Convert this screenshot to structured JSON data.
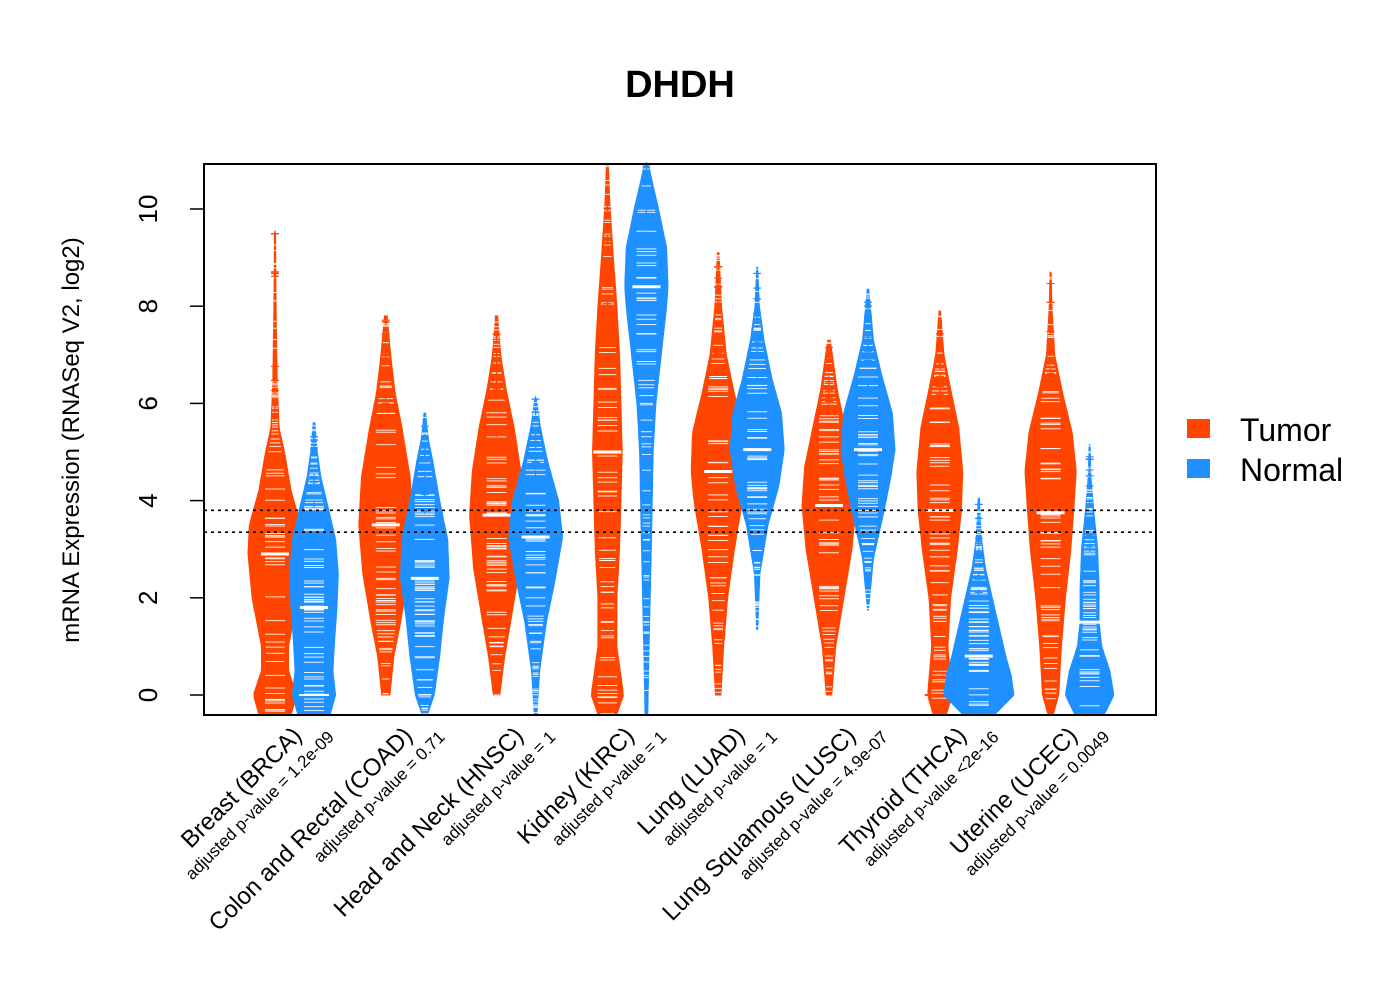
{
  "chart_data": {
    "type": "violin",
    "title": "DHDH",
    "ylabel": "mRNA Expression (RNASeq V2, log2)",
    "xlabel": "",
    "ylim": [
      -0.4,
      11
    ],
    "yticks": [
      0,
      2,
      4,
      6,
      8,
      10
    ],
    "reference_lines": [
      3.35,
      3.8
    ],
    "legend": {
      "position": "right",
      "entries": [
        {
          "name": "Tumor",
          "color": "#FF4500"
        },
        {
          "name": "Normal",
          "color": "#1E90FF"
        }
      ]
    },
    "colors": {
      "tumor": "#FF4500",
      "normal": "#1E90FF"
    },
    "categories": [
      {
        "label": "Breast (BRCA)",
        "pvalue": "adjusted p-value = 1.2e-09",
        "tumor": {
          "min": -0.5,
          "max": 9.5,
          "median": 2.9,
          "zero_mode": true,
          "profile": [
            [
              -0.4,
              0.6
            ],
            [
              0,
              0.8
            ],
            [
              0.5,
              0.5
            ],
            [
              1,
              0.5
            ],
            [
              2,
              0.85
            ],
            [
              2.9,
              1
            ],
            [
              3.5,
              0.95
            ],
            [
              4.2,
              0.6
            ],
            [
              5,
              0.35
            ],
            [
              5.5,
              0.15
            ],
            [
              6.5,
              0.08
            ],
            [
              8,
              0.04
            ],
            [
              9.5,
              0.02
            ]
          ]
        },
        "normal": {
          "min": -0.5,
          "max": 5.6,
          "median": 1.8,
          "zero_mode": true,
          "profile": [
            [
              -0.4,
              0.6
            ],
            [
              0,
              0.8
            ],
            [
              0.5,
              0.7
            ],
            [
              1,
              0.75
            ],
            [
              1.8,
              0.85
            ],
            [
              2.5,
              0.9
            ],
            [
              3.2,
              0.8
            ],
            [
              3.8,
              0.55
            ],
            [
              4.5,
              0.25
            ],
            [
              5,
              0.12
            ],
            [
              5.6,
              0.03
            ]
          ]
        }
      },
      {
        "label": "Colon and Rectal (COAD)",
        "pvalue": "adjusted p-value = 0.71",
        "tumor": {
          "min": 0,
          "max": 7.8,
          "median": 3.5,
          "zero_mode": false,
          "profile": [
            [
              0,
              0.15
            ],
            [
              0.8,
              0.3
            ],
            [
              1.5,
              0.55
            ],
            [
              2.5,
              0.85
            ],
            [
              3.5,
              1
            ],
            [
              4.5,
              0.9
            ],
            [
              5.5,
              0.6
            ],
            [
              6.2,
              0.35
            ],
            [
              7,
              0.18
            ],
            [
              7.8,
              0.05
            ]
          ]
        },
        "normal": {
          "min": -0.4,
          "max": 5.8,
          "median": 2.4,
          "zero_mode": false,
          "profile": [
            [
              -0.4,
              0.1
            ],
            [
              0,
              0.35
            ],
            [
              0.8,
              0.55
            ],
            [
              1.6,
              0.7
            ],
            [
              2.4,
              0.9
            ],
            [
              3.2,
              0.85
            ],
            [
              4,
              0.55
            ],
            [
              4.8,
              0.3
            ],
            [
              5.3,
              0.12
            ],
            [
              5.8,
              0.03
            ]
          ]
        }
      },
      {
        "label": "Head and Neck (HNSC)",
        "pvalue": "adjusted p-value = 1",
        "tumor": {
          "min": 0,
          "max": 7.8,
          "median": 3.7,
          "zero_mode": false,
          "profile": [
            [
              0,
              0.12
            ],
            [
              0.8,
              0.3
            ],
            [
              1.6,
              0.55
            ],
            [
              2.6,
              0.85
            ],
            [
              3.7,
              1
            ],
            [
              4.6,
              0.9
            ],
            [
              5.5,
              0.65
            ],
            [
              6.3,
              0.35
            ],
            [
              7,
              0.15
            ],
            [
              7.8,
              0.04
            ]
          ]
        },
        "normal": {
          "min": -0.4,
          "max": 6.1,
          "median": 3.25,
          "zero_mode": false,
          "profile": [
            [
              -0.4,
              0.05
            ],
            [
              0.5,
              0.15
            ],
            [
              1.5,
              0.4
            ],
            [
              2.3,
              0.7
            ],
            [
              3.25,
              1
            ],
            [
              4,
              0.85
            ],
            [
              4.8,
              0.45
            ],
            [
              5.5,
              0.18
            ],
            [
              6.1,
              0.03
            ]
          ]
        }
      },
      {
        "label": "Kidney (KIRC)",
        "pvalue": "adjusted p-value = 1",
        "tumor": {
          "min": -0.4,
          "max": 11,
          "median": 5.0,
          "zero_mode": true,
          "profile": [
            [
              -0.4,
              0.35
            ],
            [
              0,
              0.6
            ],
            [
              1,
              0.35
            ],
            [
              2,
              0.35
            ],
            [
              3,
              0.45
            ],
            [
              4,
              0.5
            ],
            [
              5,
              0.55
            ],
            [
              6,
              0.5
            ],
            [
              7,
              0.45
            ],
            [
              8,
              0.35
            ],
            [
              9,
              0.22
            ],
            [
              10,
              0.1
            ],
            [
              11,
              0.03
            ]
          ]
        },
        "normal": {
          "min": -0.4,
          "max": 11,
          "median": 8.4,
          "zero_mode": false,
          "profile": [
            [
              -0.4,
              0.05
            ],
            [
              1,
              0.1
            ],
            [
              3,
              0.18
            ],
            [
              5,
              0.25
            ],
            [
              6,
              0.35
            ],
            [
              7,
              0.55
            ],
            [
              8,
              0.75
            ],
            [
              8.4,
              0.8
            ],
            [
              9.2,
              0.75
            ],
            [
              10,
              0.45
            ],
            [
              10.6,
              0.2
            ],
            [
              11,
              0.05
            ]
          ]
        }
      },
      {
        "label": "Lung (LUAD)",
        "pvalue": "adjusted p-value = 1",
        "tumor": {
          "min": 0,
          "max": 9.1,
          "median": 4.6,
          "zero_mode": false,
          "profile": [
            [
              0,
              0.1
            ],
            [
              1,
              0.2
            ],
            [
              2,
              0.35
            ],
            [
              3,
              0.6
            ],
            [
              4,
              0.9
            ],
            [
              4.6,
              1
            ],
            [
              5.4,
              0.95
            ],
            [
              6.2,
              0.6
            ],
            [
              7,
              0.3
            ],
            [
              8,
              0.12
            ],
            [
              9.1,
              0.03
            ]
          ]
        },
        "normal": {
          "min": 1.35,
          "max": 8.8,
          "median": 5.05,
          "zero_mode": false,
          "profile": [
            [
              1.35,
              0.02
            ],
            [
              2.5,
              0.1
            ],
            [
              3.5,
              0.4
            ],
            [
              4.3,
              0.8
            ],
            [
              5.05,
              1
            ],
            [
              5.8,
              0.9
            ],
            [
              6.5,
              0.55
            ],
            [
              7.3,
              0.25
            ],
            [
              8,
              0.08
            ],
            [
              8.8,
              0.02
            ]
          ]
        }
      },
      {
        "label": "Lung Squamous (LUSC)",
        "pvalue": "adjusted p-value = 4.9e-07",
        "tumor": {
          "min": 0,
          "max": 7.3,
          "median": 3.9,
          "zero_mode": false,
          "profile": [
            [
              0,
              0.1
            ],
            [
              1,
              0.25
            ],
            [
              2,
              0.55
            ],
            [
              3,
              0.85
            ],
            [
              3.9,
              1
            ],
            [
              4.7,
              0.9
            ],
            [
              5.5,
              0.6
            ],
            [
              6.3,
              0.3
            ],
            [
              7.3,
              0.05
            ]
          ]
        },
        "normal": {
          "min": 1.75,
          "max": 8.35,
          "median": 5.05,
          "zero_mode": false,
          "profile": [
            [
              1.75,
              0.02
            ],
            [
              2.8,
              0.2
            ],
            [
              3.8,
              0.6
            ],
            [
              4.5,
              0.85
            ],
            [
              5.05,
              1
            ],
            [
              5.8,
              0.9
            ],
            [
              6.6,
              0.5
            ],
            [
              7.3,
              0.2
            ],
            [
              8.35,
              0.03
            ]
          ]
        }
      },
      {
        "label": "Thyroid (THCA)",
        "pvalue": "adjusted p-value <2e-16",
        "tumor": {
          "min": -0.4,
          "max": 7.9,
          "median": 3.8,
          "zero_mode": true,
          "profile": [
            [
              -0.4,
              0.25
            ],
            [
              0,
              0.45
            ],
            [
              1,
              0.3
            ],
            [
              2,
              0.4
            ],
            [
              3,
              0.65
            ],
            [
              3.8,
              0.8
            ],
            [
              4.6,
              0.85
            ],
            [
              5.5,
              0.7
            ],
            [
              6.3,
              0.4
            ],
            [
              7,
              0.15
            ],
            [
              7.9,
              0.03
            ]
          ]
        },
        "normal": {
          "min": -0.4,
          "max": 4.05,
          "median": 0.8,
          "zero_mode": false,
          "profile": [
            [
              -0.4,
              0.6
            ],
            [
              0,
              1.3
            ],
            [
              0.4,
              1.2
            ],
            [
              0.8,
              1
            ],
            [
              1.4,
              0.75
            ],
            [
              2,
              0.5
            ],
            [
              2.6,
              0.25
            ],
            [
              3.2,
              0.1
            ],
            [
              4.05,
              0.02
            ]
          ]
        }
      },
      {
        "label": "Uterine (UCEC)",
        "pvalue": "adjusted p-value = 0.0049",
        "tumor": {
          "min": -0.4,
          "max": 8.7,
          "median": 3.75,
          "zero_mode": false,
          "profile": [
            [
              -0.4,
              0.1
            ],
            [
              0,
              0.3
            ],
            [
              1,
              0.4
            ],
            [
              2,
              0.55
            ],
            [
              3,
              0.75
            ],
            [
              3.75,
              0.85
            ],
            [
              4.6,
              0.95
            ],
            [
              5.4,
              0.8
            ],
            [
              6.2,
              0.45
            ],
            [
              7,
              0.15
            ],
            [
              8,
              0.05
            ],
            [
              8.7,
              0.02
            ]
          ]
        },
        "normal": {
          "min": -0.4,
          "max": 5.15,
          "median": 1.5,
          "zero_mode": false,
          "profile": [
            [
              -0.4,
              0.55
            ],
            [
              0,
              0.9
            ],
            [
              0.5,
              0.75
            ],
            [
              1,
              0.45
            ],
            [
              1.5,
              0.35
            ],
            [
              2.2,
              0.35
            ],
            [
              3,
              0.3
            ],
            [
              3.8,
              0.15
            ],
            [
              4.5,
              0.05
            ],
            [
              5.15,
              0.02
            ]
          ]
        }
      }
    ]
  }
}
